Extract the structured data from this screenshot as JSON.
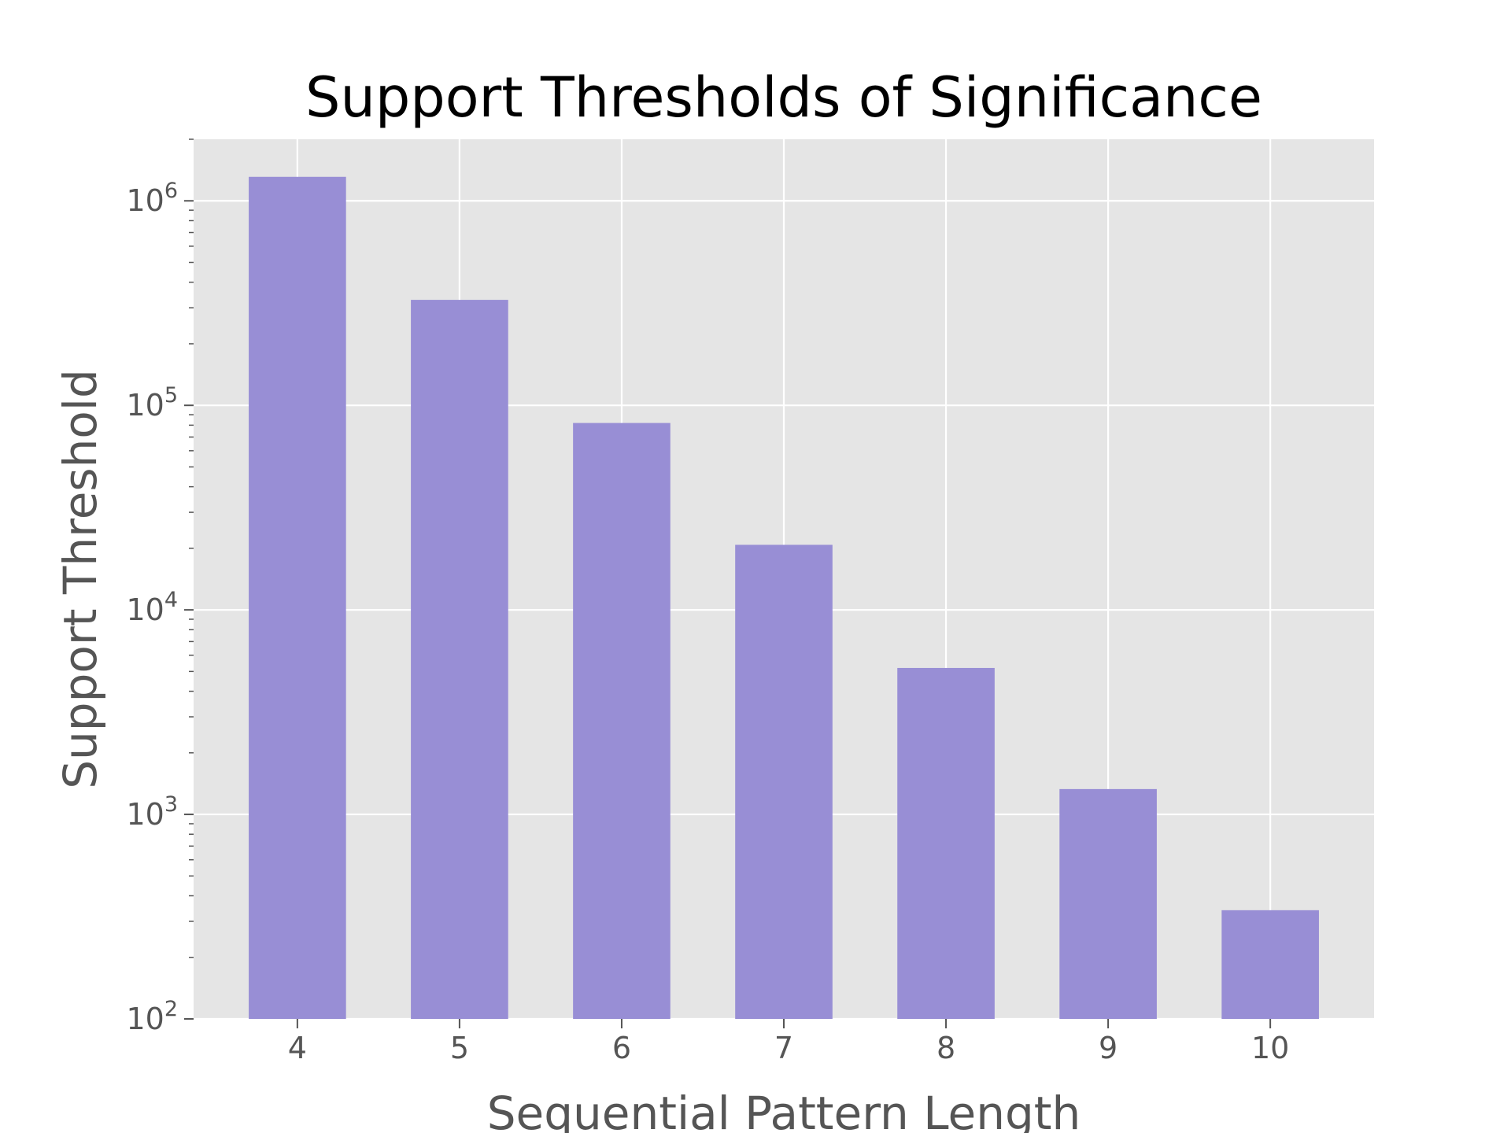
{
  "chart_data": {
    "type": "bar",
    "title": "Support Thresholds of Significance",
    "xlabel": "Sequential Pattern Length",
    "ylabel": "Support Threshold",
    "categories": [
      "4",
      "5",
      "6",
      "7",
      "8",
      "9",
      "10"
    ],
    "values": [
      1310000,
      328000,
      82000,
      20800,
      5200,
      1330,
      340
    ],
    "y_scale": "log",
    "ylim": [
      100,
      2000000
    ],
    "y_ticks": [
      {
        "value": 100,
        "base": "10",
        "exp": "2"
      },
      {
        "value": 1000,
        "base": "10",
        "exp": "3"
      },
      {
        "value": 10000,
        "base": "10",
        "exp": "4"
      },
      {
        "value": 100000,
        "base": "10",
        "exp": "5"
      },
      {
        "value": 1000000,
        "base": "10",
        "exp": "6"
      }
    ],
    "grid": true,
    "legend": "none",
    "colors": {
      "bar": "#988ED5",
      "plot_background": "#E5E5E5",
      "grid": "#FFFFFF",
      "tick_text": "#555555"
    }
  }
}
